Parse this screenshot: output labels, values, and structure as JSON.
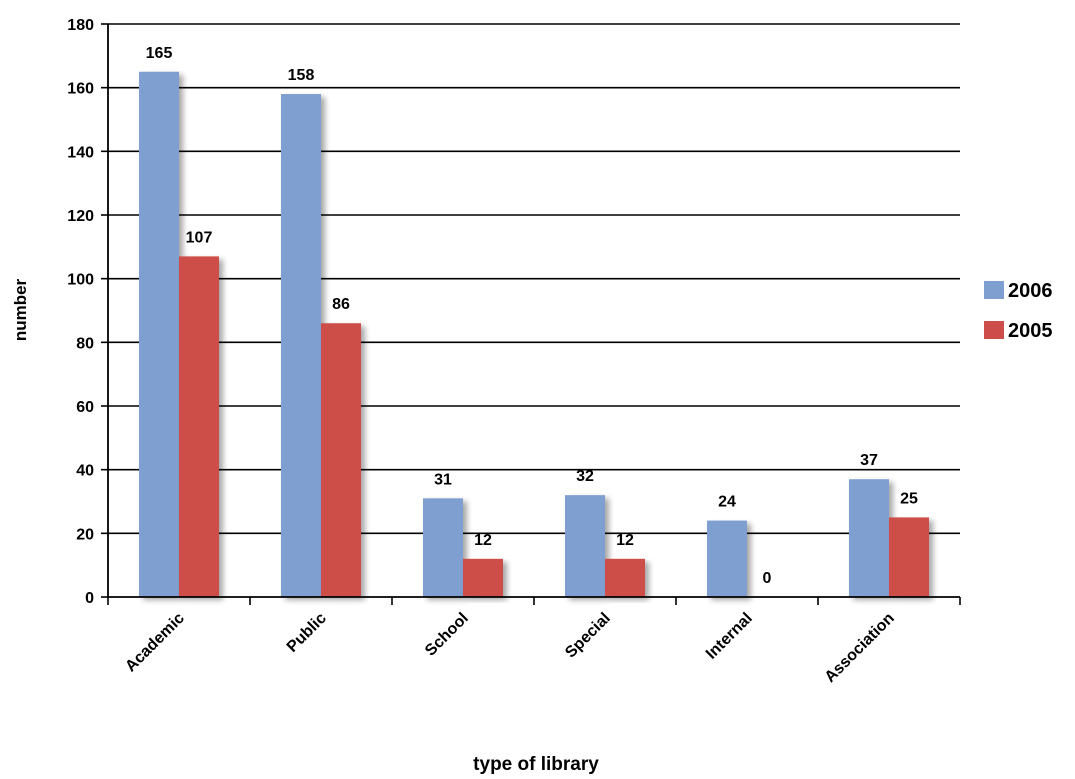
{
  "chart_data": {
    "type": "bar",
    "title": "",
    "xlabel": "type of library",
    "ylabel": "number",
    "categories": [
      "Academic",
      "Public",
      "School",
      "Special",
      "Internal",
      "Association"
    ],
    "series": [
      {
        "name": "2006",
        "color": "#7f9fd0",
        "values": [
          165,
          158,
          31,
          32,
          24,
          37
        ]
      },
      {
        "name": "2005",
        "color": "#cd4d4a",
        "values": [
          107,
          86,
          12,
          12,
          0,
          25
        ]
      }
    ],
    "ylim": [
      0,
      180
    ],
    "yticks": [
      0,
      20,
      40,
      60,
      80,
      100,
      120,
      140,
      160,
      180
    ],
    "grid": true,
    "legend": "right",
    "data_labels": true
  }
}
